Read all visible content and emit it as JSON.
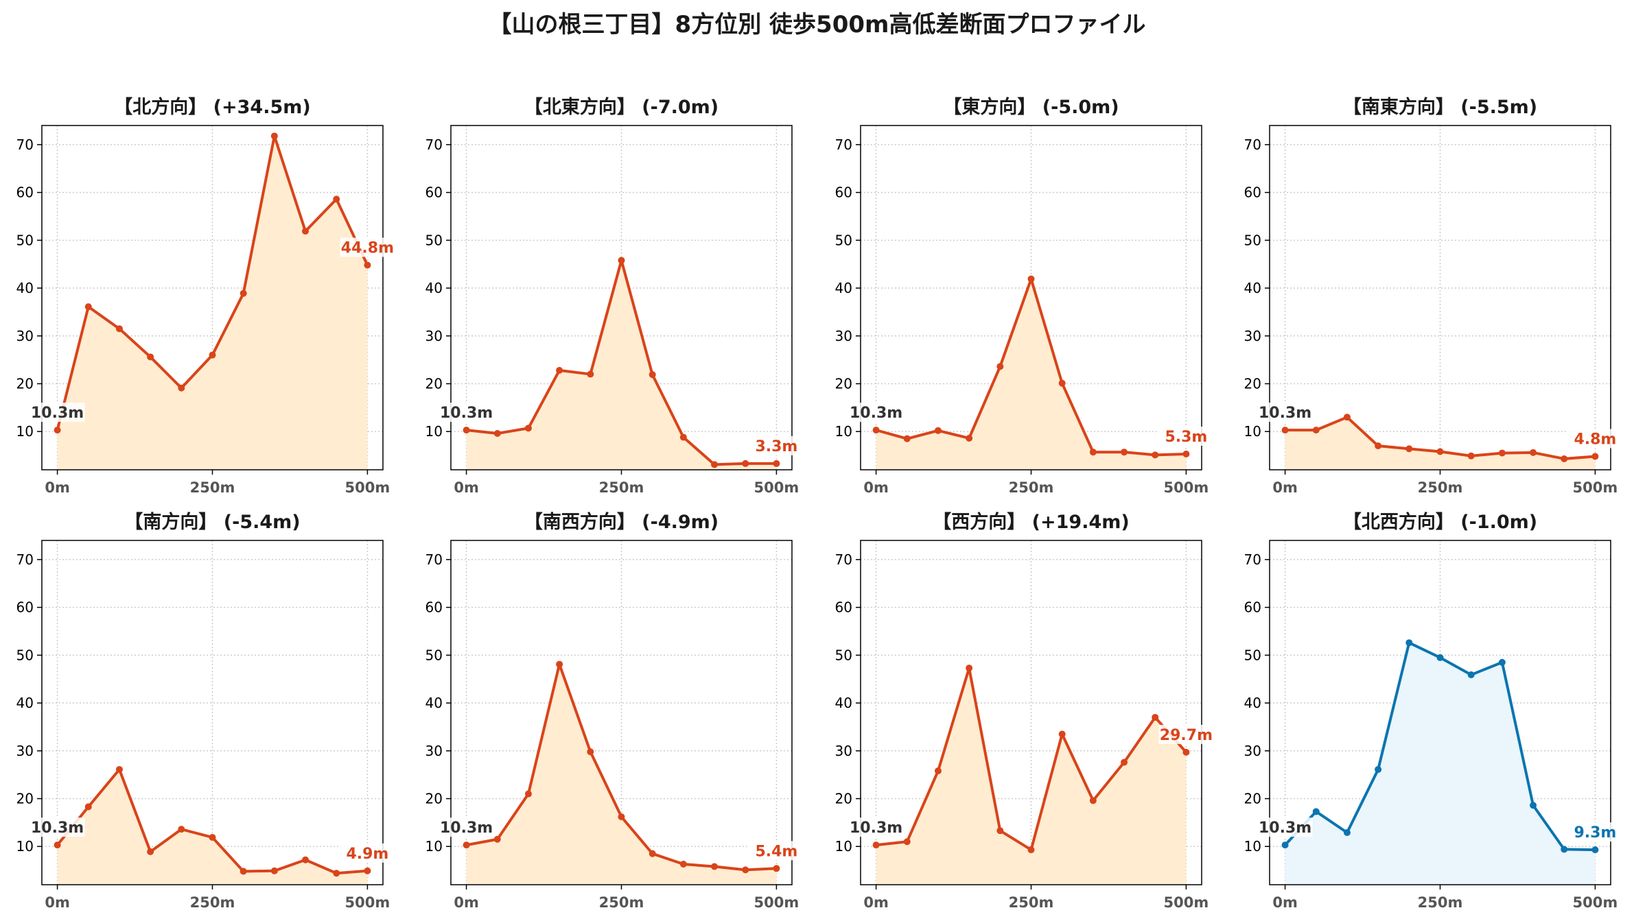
{
  "title": "【山の根三丁目】8方位別 徒歩500m高低差断面プロファイル",
  "colors": {
    "up": "#d9441a",
    "up_fill": "#ffecd1",
    "down": "#0a75b0",
    "down_fill": "#eaf5fc"
  },
  "chart_data": [
    {
      "type": "area",
      "title": "【北方向】 (+34.5m)",
      "x": [
        0,
        50,
        100,
        150,
        200,
        250,
        300,
        350,
        400,
        450,
        500
      ],
      "xticks": [
        "0m",
        "250m",
        "500m"
      ],
      "ylim": [
        2,
        74
      ],
      "yticks": [
        10,
        20,
        30,
        40,
        50,
        60,
        70
      ],
      "grid": true,
      "color": "orange",
      "values": [
        10.3,
        36.1,
        31.5,
        25.6,
        19.1,
        26.0,
        38.9,
        71.8,
        51.9,
        58.6,
        44.8
      ],
      "start_label": "10.3m",
      "end_label": "44.8m"
    },
    {
      "type": "area",
      "title": "【北東方向】 (-7.0m)",
      "x": [
        0,
        50,
        100,
        150,
        200,
        250,
        300,
        350,
        400,
        450,
        500
      ],
      "xticks": [
        "0m",
        "250m",
        "500m"
      ],
      "ylim": [
        2,
        74
      ],
      "yticks": [
        10,
        20,
        30,
        40,
        50,
        60,
        70
      ],
      "grid": true,
      "color": "orange",
      "values": [
        10.3,
        9.6,
        10.7,
        22.8,
        22.0,
        45.8,
        21.9,
        8.8,
        3.1,
        3.3,
        3.3
      ],
      "start_label": "10.3m",
      "end_label": "3.3m"
    },
    {
      "type": "area",
      "title": "【東方向】 (-5.0m)",
      "x": [
        0,
        50,
        100,
        150,
        200,
        250,
        300,
        350,
        400,
        450,
        500
      ],
      "xticks": [
        "0m",
        "250m",
        "500m"
      ],
      "ylim": [
        2,
        74
      ],
      "yticks": [
        10,
        20,
        30,
        40,
        50,
        60,
        70
      ],
      "grid": true,
      "color": "orange",
      "values": [
        10.3,
        8.5,
        10.2,
        8.6,
        23.6,
        41.9,
        20.1,
        5.7,
        5.7,
        5.1,
        5.3
      ],
      "start_label": "10.3m",
      "end_label": "5.3m"
    },
    {
      "type": "area",
      "title": "【南東方向】 (-5.5m)",
      "x": [
        0,
        50,
        100,
        150,
        200,
        250,
        300,
        350,
        400,
        450,
        500
      ],
      "xticks": [
        "0m",
        "250m",
        "500m"
      ],
      "ylim": [
        2,
        74
      ],
      "yticks": [
        10,
        20,
        30,
        40,
        50,
        60,
        70
      ],
      "grid": true,
      "color": "orange",
      "values": [
        10.3,
        10.3,
        13.0,
        7.0,
        6.4,
        5.8,
        4.9,
        5.5,
        5.6,
        4.3,
        4.8
      ],
      "start_label": "10.3m",
      "end_label": "4.8m"
    },
    {
      "type": "area",
      "title": "【南方向】 (-5.4m)",
      "x": [
        0,
        50,
        100,
        150,
        200,
        250,
        300,
        350,
        400,
        450,
        500
      ],
      "xticks": [
        "0m",
        "250m",
        "500m"
      ],
      "ylim": [
        2,
        74
      ],
      "yticks": [
        10,
        20,
        30,
        40,
        50,
        60,
        70
      ],
      "grid": true,
      "color": "orange",
      "values": [
        10.3,
        18.3,
        26.1,
        8.9,
        13.6,
        11.9,
        4.8,
        4.9,
        7.2,
        4.4,
        4.9
      ],
      "start_label": "10.3m",
      "end_label": "4.9m"
    },
    {
      "type": "area",
      "title": "【南西方向】 (-4.9m)",
      "x": [
        0,
        50,
        100,
        150,
        200,
        250,
        300,
        350,
        400,
        450,
        500
      ],
      "xticks": [
        "0m",
        "250m",
        "500m"
      ],
      "ylim": [
        2,
        74
      ],
      "yticks": [
        10,
        20,
        30,
        40,
        50,
        60,
        70
      ],
      "grid": true,
      "color": "orange",
      "values": [
        10.3,
        11.5,
        21.0,
        48.1,
        29.8,
        16.2,
        8.5,
        6.3,
        5.8,
        5.1,
        5.4
      ],
      "start_label": "10.3m",
      "end_label": "5.4m"
    },
    {
      "type": "area",
      "title": "【西方向】 (+19.4m)",
      "x": [
        0,
        50,
        100,
        150,
        200,
        250,
        300,
        350,
        400,
        450,
        500
      ],
      "xticks": [
        "0m",
        "250m",
        "500m"
      ],
      "ylim": [
        2,
        74
      ],
      "yticks": [
        10,
        20,
        30,
        40,
        50,
        60,
        70
      ],
      "grid": true,
      "color": "orange",
      "values": [
        10.3,
        11.0,
        25.8,
        47.3,
        13.3,
        9.3,
        33.5,
        19.6,
        27.6,
        37.0,
        29.7
      ],
      "start_label": "10.3m",
      "end_label": "29.7m"
    },
    {
      "type": "area",
      "title": "【北西方向】 (-1.0m)",
      "x": [
        0,
        50,
        100,
        150,
        200,
        250,
        300,
        350,
        400,
        450,
        500
      ],
      "xticks": [
        "0m",
        "250m",
        "500m"
      ],
      "ylim": [
        2,
        74
      ],
      "yticks": [
        10,
        20,
        30,
        40,
        50,
        60,
        70
      ],
      "grid": true,
      "color": "blue",
      "values": [
        10.3,
        17.3,
        12.9,
        26.1,
        52.6,
        49.5,
        45.9,
        48.5,
        18.6,
        9.4,
        9.3
      ],
      "start_label": "10.3m",
      "end_label": "9.3m"
    }
  ]
}
